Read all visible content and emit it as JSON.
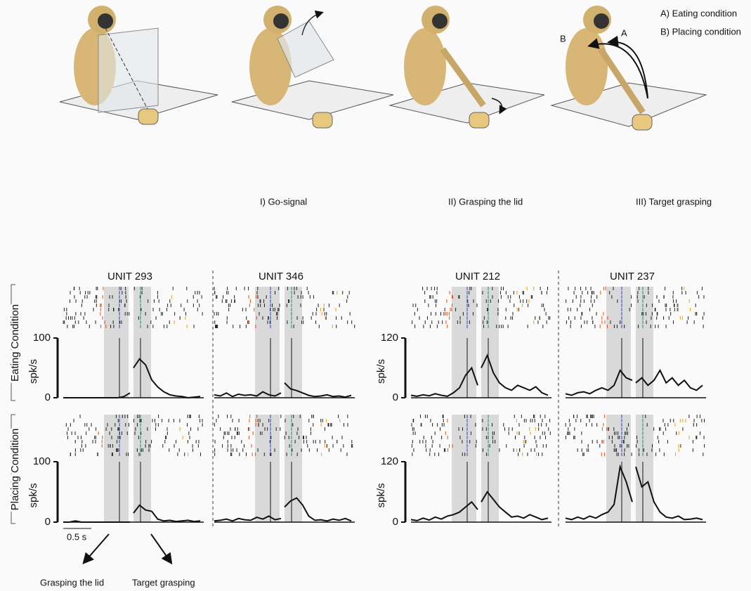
{
  "figure": {
    "top_labels": {
      "go": "I) Go-signal",
      "lid": "II) Grasping the lid",
      "target": "III) Target grasping",
      "a_cond": "A) Eating condition",
      "b_cond": "B) Placing condition",
      "a": "A",
      "b": "B"
    },
    "row_labels": {
      "eating": "Eating Condition",
      "placing": "Placing Condition"
    },
    "scale_bar": "0.5 s",
    "bottom_labels": {
      "lid": "Grasping the lid",
      "target": "Target grasping"
    },
    "pairs": [
      {
        "ylabel": "spk/s",
        "ylim": [
          0,
          100
        ],
        "yticks": [
          0,
          100
        ],
        "units": [
          {
            "title": "UNIT 293",
            "eating": {
              "left": [
                0,
                0,
                0,
                0,
                0,
                0,
                0,
                0,
                0,
                0,
                2,
                8
              ],
              "right": [
                50,
                65,
                55,
                30,
                18,
                10,
                5,
                3,
                2,
                0,
                1,
                2
              ]
            },
            "placing": {
              "left": [
                0,
                0,
                2,
                0,
                0,
                0,
                0,
                0,
                0,
                0,
                0,
                0
              ],
              "right": [
                15,
                28,
                20,
                18,
                5,
                2,
                3,
                1,
                2,
                3,
                1,
                2
              ]
            }
          },
          {
            "title": "UNIT 346",
            "eating": {
              "left": [
                5,
                3,
                8,
                2,
                6,
                4,
                5,
                3,
                10,
                5,
                3,
                8
              ],
              "right": [
                25,
                15,
                12,
                8,
                4,
                2,
                3,
                5,
                2,
                3,
                1,
                4
              ]
            },
            "placing": {
              "left": [
                2,
                3,
                5,
                2,
                6,
                4,
                3,
                8,
                5,
                10,
                4,
                6
              ],
              "right": [
                25,
                35,
                40,
                28,
                10,
                3,
                4,
                2,
                5,
                3,
                6,
                2
              ]
            }
          }
        ]
      },
      {
        "ylabel": "spk/s",
        "ylim": [
          0,
          120
        ],
        "yticks": [
          0,
          120
        ],
        "units": [
          {
            "title": "UNIT 212",
            "eating": {
              "left": [
                5,
                3,
                6,
                4,
                8,
                5,
                3,
                10,
                20,
                45,
                60,
                25
              ],
              "right": [
                60,
                85,
                50,
                30,
                20,
                15,
                25,
                20,
                15,
                22,
                10,
                5
              ]
            },
            "placing": {
              "left": [
                5,
                3,
                8,
                4,
                10,
                6,
                12,
                15,
                20,
                30,
                40,
                25
              ],
              "right": [
                40,
                60,
                45,
                30,
                20,
                10,
                12,
                8,
                15,
                10,
                5,
                8
              ]
            }
          },
          {
            "title": "UNIT 237",
            "eating": {
              "left": [
                8,
                5,
                10,
                12,
                8,
                15,
                20,
                15,
                25,
                55,
                40,
                35
              ],
              "right": [
                30,
                40,
                25,
                35,
                55,
                30,
                40,
                25,
                35,
                20,
                15,
                25
              ]
            },
            "placing": {
              "left": [
                8,
                5,
                10,
                6,
                12,
                8,
                15,
                20,
                35,
                110,
                80,
                40
              ],
              "right": [
                110,
                70,
                80,
                40,
                20,
                10,
                8,
                12,
                5,
                6,
                8,
                5
              ]
            }
          }
        ]
      }
    ]
  }
}
